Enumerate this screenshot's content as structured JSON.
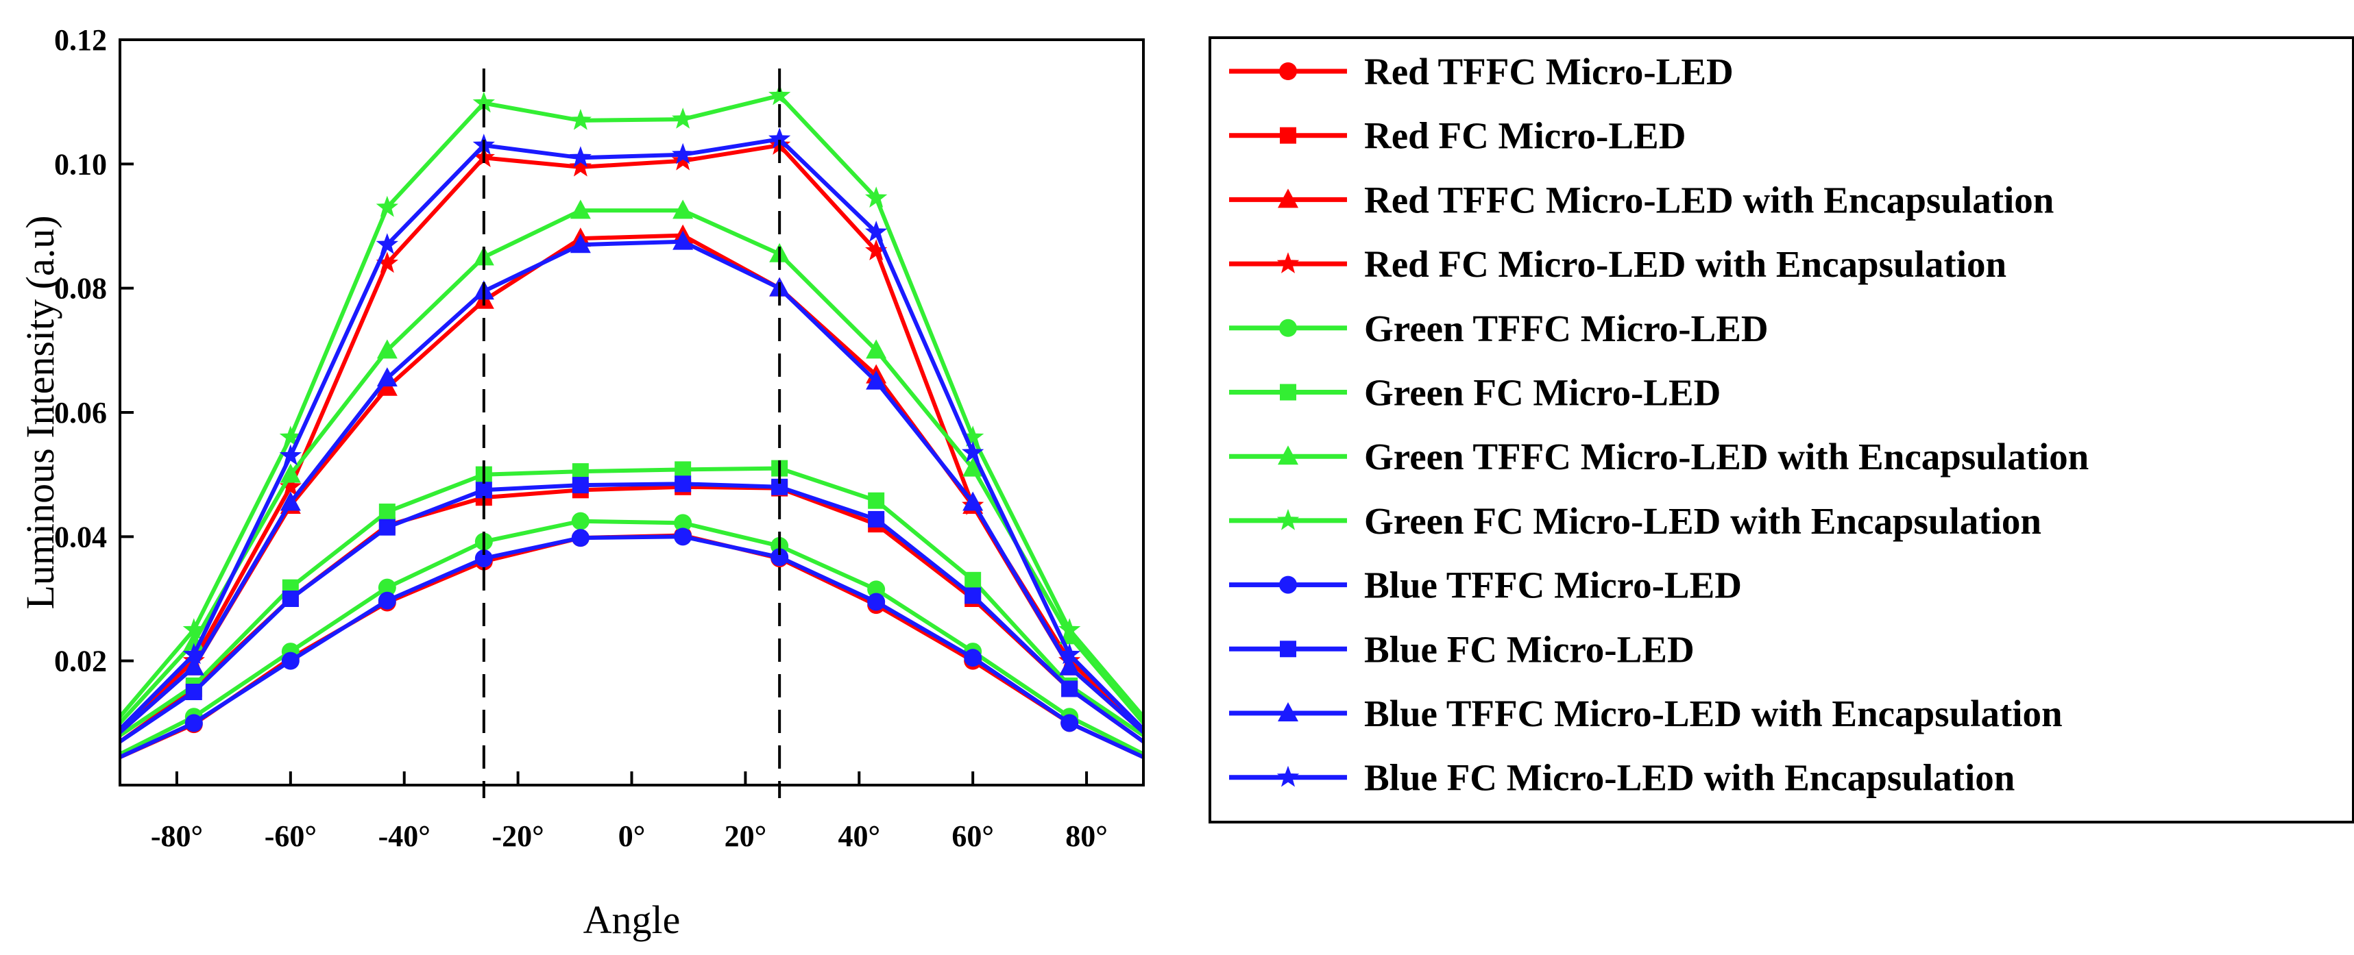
{
  "chart_data": {
    "type": "line",
    "xlabel": "Angle",
    "ylabel": "Luminous Intensity (a.u)",
    "xlim": [
      -90,
      90
    ],
    "ylim": [
      0,
      0.12
    ],
    "x_tick_values": [
      -80,
      -60,
      -40,
      -20,
      0,
      20,
      40,
      60,
      80
    ],
    "x_tick_labels": [
      "-80°",
      "-60°",
      "-40°",
      "-20°",
      "0°",
      "20°",
      "40°",
      "60°",
      "80°"
    ],
    "y_tick_values": [
      0.02,
      0.04,
      0.06,
      0.08,
      0.1,
      0.12
    ],
    "y_tick_labels": [
      "0.02",
      "0.04",
      "0.06",
      "0.08",
      "0.10",
      "0.12"
    ],
    "reference_lines_x": [
      -26,
      26
    ],
    "legend_position": "right",
    "colors": {
      "red": "#ff0000",
      "green": "#33ee33",
      "blue": "#1a1aff"
    },
    "x": [
      -90,
      -77,
      -60,
      -43,
      -26,
      -9,
      9,
      26,
      43,
      60,
      77,
      90
    ],
    "series": [
      {
        "name": "Red TFFC Micro-LED",
        "color": "red",
        "marker": "circle",
        "values": [
          0.0045,
          0.0098,
          0.0204,
          0.0294,
          0.036,
          0.0398,
          0.0402,
          0.0365,
          0.029,
          0.02,
          0.01,
          0.0045
        ]
      },
      {
        "name": "Red FC Micro-LED",
        "color": "red",
        "marker": "square",
        "values": [
          0.007,
          0.0155,
          0.03,
          0.0418,
          0.0463,
          0.0475,
          0.048,
          0.0478,
          0.042,
          0.03,
          0.0155,
          0.007
        ]
      },
      {
        "name": "Red TFFC Micro-LED with Encapsulation",
        "color": "red",
        "marker": "triangle",
        "values": [
          0.0085,
          0.019,
          0.045,
          0.064,
          0.078,
          0.088,
          0.0885,
          0.08,
          0.066,
          0.045,
          0.019,
          0.0085
        ]
      },
      {
        "name": "Red FC Micro-LED with Encapsulation",
        "color": "red",
        "marker": "star",
        "values": [
          0.009,
          0.02,
          0.048,
          0.084,
          0.101,
          0.0995,
          0.1005,
          0.103,
          0.086,
          0.045,
          0.02,
          0.009
        ]
      },
      {
        "name": "Green TFFC Micro-LED",
        "color": "green",
        "marker": "circle",
        "values": [
          0.005,
          0.011,
          0.0215,
          0.0318,
          0.0392,
          0.0425,
          0.0422,
          0.0385,
          0.0315,
          0.0215,
          0.011,
          0.005
        ]
      },
      {
        "name": "Green FC Micro-LED",
        "color": "green",
        "marker": "square",
        "values": [
          0.008,
          0.016,
          0.0318,
          0.044,
          0.05,
          0.0505,
          0.0508,
          0.051,
          0.0458,
          0.033,
          0.016,
          0.008
        ]
      },
      {
        "name": "Green TFFC Micro-LED with Encapsulation",
        "color": "green",
        "marker": "triangle",
        "values": [
          0.01,
          0.023,
          0.05,
          0.07,
          0.085,
          0.0925,
          0.0925,
          0.0855,
          0.07,
          0.051,
          0.024,
          0.01
        ]
      },
      {
        "name": "Green FC Micro-LED with Encapsulation",
        "color": "green",
        "marker": "star",
        "values": [
          0.011,
          0.025,
          0.056,
          0.093,
          0.1098,
          0.107,
          0.1072,
          0.111,
          0.0945,
          0.056,
          0.025,
          0.011
        ]
      },
      {
        "name": "Blue TFFC Micro-LED",
        "color": "blue",
        "marker": "circle",
        "values": [
          0.0045,
          0.01,
          0.02,
          0.0297,
          0.0365,
          0.0398,
          0.04,
          0.0367,
          0.0295,
          0.0205,
          0.01,
          0.0045
        ]
      },
      {
        "name": "Blue FC Micro-LED",
        "color": "blue",
        "marker": "square",
        "values": [
          0.007,
          0.015,
          0.03,
          0.0415,
          0.0475,
          0.0483,
          0.0485,
          0.048,
          0.0428,
          0.0305,
          0.0155,
          0.007
        ]
      },
      {
        "name": "Blue TFFC Micro-LED with Encapsulation",
        "color": "blue",
        "marker": "triangle",
        "values": [
          0.0085,
          0.019,
          0.0455,
          0.0655,
          0.0795,
          0.087,
          0.0875,
          0.08,
          0.065,
          0.0455,
          0.019,
          0.0085
        ]
      },
      {
        "name": "Blue FC Micro-LED with Encapsulation",
        "color": "blue",
        "marker": "star",
        "values": [
          0.009,
          0.021,
          0.053,
          0.087,
          0.103,
          0.101,
          0.1015,
          0.104,
          0.089,
          0.0535,
          0.021,
          0.009
        ]
      }
    ]
  }
}
